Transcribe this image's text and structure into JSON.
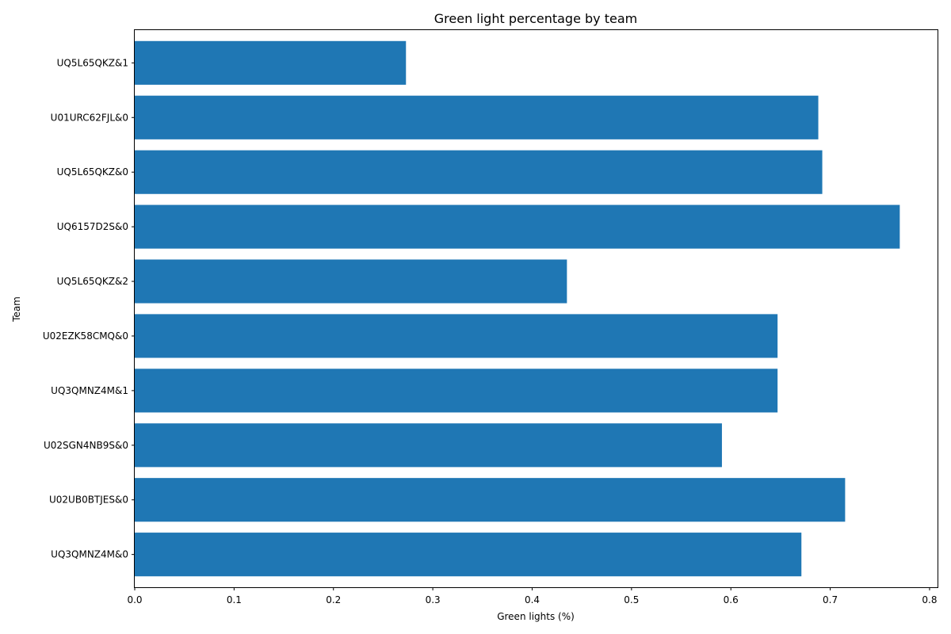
{
  "chart_data": {
    "type": "bar",
    "orientation": "horizontal",
    "title": "Green light percentage by team",
    "xlabel": "Green lights (%)",
    "ylabel": "Team",
    "categories": [
      "UQ5L65QKZ&1",
      "U01URC62FJL&0",
      "UQ5L65QKZ&0",
      "UQ6157D2S&0",
      "UQ5L65QKZ&2",
      "U02EZK58CMQ&0",
      "UQ3QMNZ4M&1",
      "U02SGN4NB9S&0",
      "U02UB0BTJES&0",
      "UQ3QMNZ4M&0"
    ],
    "values": [
      0.273,
      0.688,
      0.692,
      0.77,
      0.435,
      0.647,
      0.647,
      0.591,
      0.715,
      0.671
    ],
    "xlim": [
      0,
      0.808
    ],
    "xticks": [
      "0.0",
      "0.1",
      "0.2",
      "0.3",
      "0.4",
      "0.5",
      "0.6",
      "0.7",
      "0.8"
    ],
    "grid": false,
    "bar_color": "#1f77b4"
  }
}
